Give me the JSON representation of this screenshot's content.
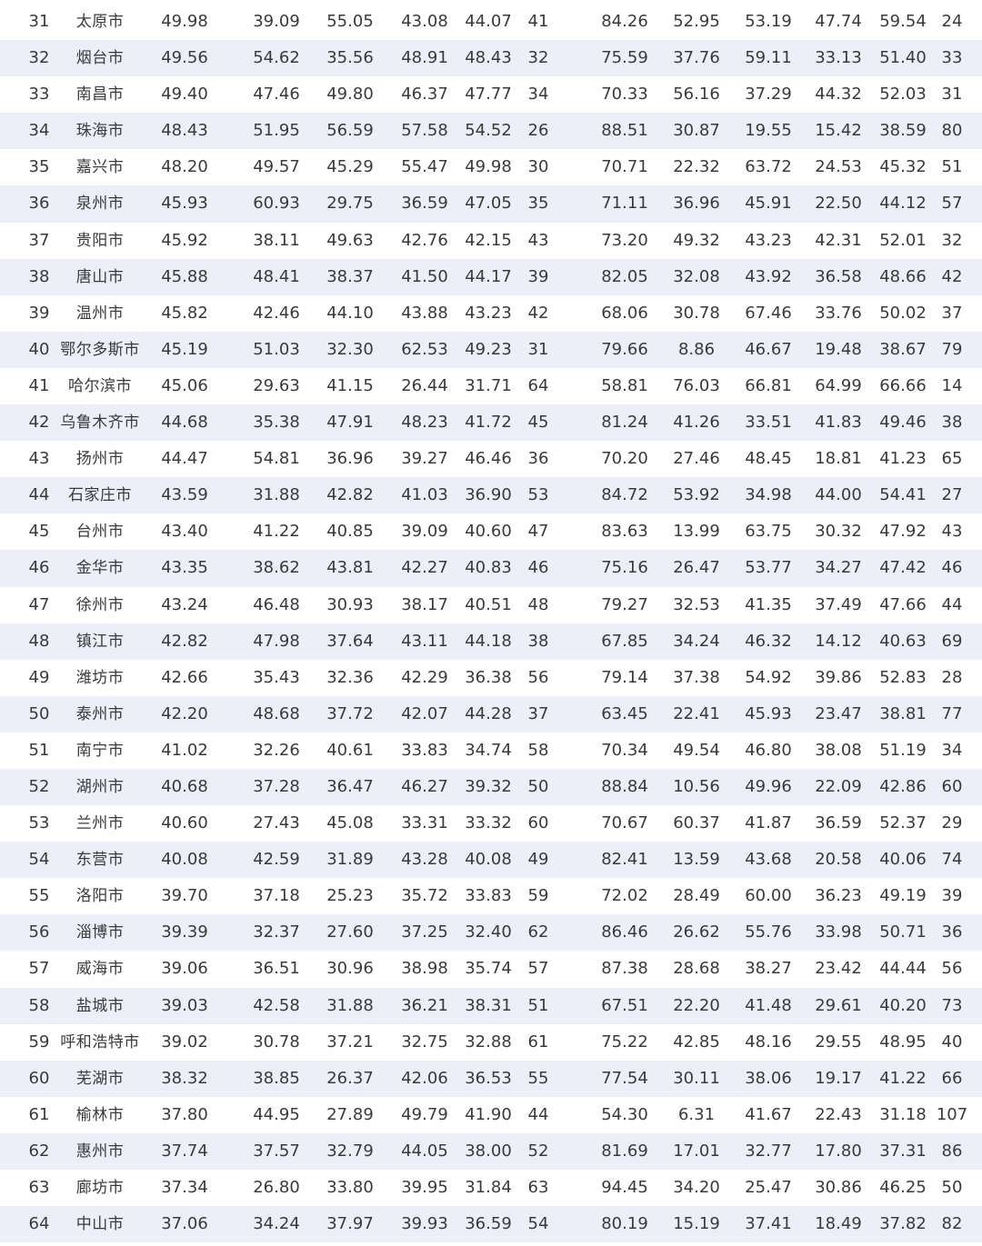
{
  "table": {
    "rows": [
      [
        "31",
        "太原市",
        "49.98",
        "39.09",
        "55.05",
        "43.08",
        "44.07",
        "41",
        "84.26",
        "52.95",
        "53.19",
        "47.74",
        "59.54",
        "24"
      ],
      [
        "32",
        "烟台市",
        "49.56",
        "54.62",
        "35.56",
        "48.91",
        "48.43",
        "32",
        "75.59",
        "37.76",
        "59.11",
        "33.13",
        "51.40",
        "33"
      ],
      [
        "33",
        "南昌市",
        "49.40",
        "47.46",
        "49.80",
        "46.37",
        "47.77",
        "34",
        "70.33",
        "56.16",
        "37.29",
        "44.32",
        "52.03",
        "31"
      ],
      [
        "34",
        "珠海市",
        "48.43",
        "51.95",
        "56.59",
        "57.58",
        "54.52",
        "26",
        "88.51",
        "30.87",
        "19.55",
        "15.42",
        "38.59",
        "80"
      ],
      [
        "35",
        "嘉兴市",
        "48.20",
        "49.57",
        "45.29",
        "55.47",
        "49.98",
        "30",
        "70.71",
        "22.32",
        "63.72",
        "24.53",
        "45.32",
        "51"
      ],
      [
        "36",
        "泉州市",
        "45.93",
        "60.93",
        "29.75",
        "36.59",
        "47.05",
        "35",
        "71.11",
        "36.96",
        "45.91",
        "22.50",
        "44.12",
        "57"
      ],
      [
        "37",
        "贵阳市",
        "45.92",
        "38.11",
        "49.63",
        "42.76",
        "42.15",
        "43",
        "73.20",
        "49.32",
        "43.23",
        "42.31",
        "52.01",
        "32"
      ],
      [
        "38",
        "唐山市",
        "45.88",
        "48.41",
        "38.37",
        "41.50",
        "44.17",
        "39",
        "82.05",
        "32.08",
        "43.92",
        "36.58",
        "48.66",
        "42"
      ],
      [
        "39",
        "温州市",
        "45.82",
        "42.46",
        "44.10",
        "43.88",
        "43.23",
        "42",
        "68.06",
        "30.78",
        "67.46",
        "33.76",
        "50.02",
        "37"
      ],
      [
        "40",
        "鄂尔多斯市",
        "45.19",
        "51.03",
        "32.30",
        "62.53",
        "49.23",
        "31",
        "79.66",
        "8.86",
        "46.67",
        "19.48",
        "38.67",
        "79"
      ],
      [
        "41",
        "哈尔滨市",
        "45.06",
        "29.63",
        "41.15",
        "26.44",
        "31.71",
        "64",
        "58.81",
        "76.03",
        "66.81",
        "64.99",
        "66.66",
        "14"
      ],
      [
        "42",
        "乌鲁木齐市",
        "44.68",
        "35.38",
        "47.91",
        "48.23",
        "41.72",
        "45",
        "81.24",
        "41.26",
        "33.51",
        "41.83",
        "49.46",
        "38"
      ],
      [
        "43",
        "扬州市",
        "44.47",
        "54.81",
        "36.96",
        "39.27",
        "46.46",
        "36",
        "70.20",
        "27.46",
        "48.45",
        "18.81",
        "41.23",
        "65"
      ],
      [
        "44",
        "石家庄市",
        "43.59",
        "31.88",
        "42.82",
        "41.03",
        "36.90",
        "53",
        "84.72",
        "53.92",
        "34.98",
        "44.00",
        "54.41",
        "27"
      ],
      [
        "45",
        "台州市",
        "43.40",
        "41.22",
        "40.85",
        "39.09",
        "40.60",
        "47",
        "83.63",
        "13.99",
        "63.75",
        "30.32",
        "47.92",
        "43"
      ],
      [
        "46",
        "金华市",
        "43.35",
        "38.62",
        "43.81",
        "42.27",
        "40.83",
        "46",
        "75.16",
        "26.47",
        "53.77",
        "34.27",
        "47.42",
        "46"
      ],
      [
        "47",
        "徐州市",
        "43.24",
        "46.48",
        "30.93",
        "38.17",
        "40.51",
        "48",
        "79.27",
        "32.53",
        "41.35",
        "37.49",
        "47.66",
        "44"
      ],
      [
        "48",
        "镇江市",
        "42.82",
        "47.98",
        "37.64",
        "43.11",
        "44.18",
        "38",
        "67.85",
        "34.24",
        "46.32",
        "14.12",
        "40.63",
        "69"
      ],
      [
        "49",
        "潍坊市",
        "42.66",
        "35.43",
        "32.36",
        "42.29",
        "36.38",
        "56",
        "79.14",
        "37.38",
        "54.92",
        "39.86",
        "52.83",
        "28"
      ],
      [
        "50",
        "泰州市",
        "42.20",
        "48.68",
        "37.72",
        "42.07",
        "44.28",
        "37",
        "63.45",
        "22.41",
        "45.93",
        "23.47",
        "38.81",
        "77"
      ],
      [
        "51",
        "南宁市",
        "41.02",
        "32.26",
        "40.61",
        "33.83",
        "34.74",
        "58",
        "70.34",
        "49.54",
        "46.80",
        "38.08",
        "51.19",
        "34"
      ],
      [
        "52",
        "湖州市",
        "40.68",
        "37.28",
        "36.47",
        "46.27",
        "39.32",
        "50",
        "88.84",
        "10.56",
        "49.96",
        "22.09",
        "42.86",
        "60"
      ],
      [
        "53",
        "兰州市",
        "40.60",
        "27.43",
        "45.08",
        "33.31",
        "33.32",
        "60",
        "70.67",
        "60.37",
        "41.87",
        "36.59",
        "52.37",
        "29"
      ],
      [
        "54",
        "东营市",
        "40.08",
        "42.59",
        "31.89",
        "43.28",
        "40.08",
        "49",
        "82.41",
        "13.59",
        "43.68",
        "20.58",
        "40.06",
        "74"
      ],
      [
        "55",
        "洛阳市",
        "39.70",
        "37.18",
        "25.23",
        "35.72",
        "33.83",
        "59",
        "72.02",
        "28.49",
        "60.00",
        "36.23",
        "49.19",
        "39"
      ],
      [
        "56",
        "淄博市",
        "39.39",
        "32.37",
        "27.60",
        "37.25",
        "32.40",
        "62",
        "86.46",
        "26.62",
        "55.76",
        "33.98",
        "50.71",
        "36"
      ],
      [
        "57",
        "威海市",
        "39.06",
        "36.51",
        "30.96",
        "38.98",
        "35.74",
        "57",
        "87.38",
        "28.68",
        "38.27",
        "23.42",
        "44.44",
        "56"
      ],
      [
        "58",
        "盐城市",
        "39.03",
        "42.58",
        "31.88",
        "36.21",
        "38.31",
        "51",
        "67.51",
        "22.20",
        "41.48",
        "29.61",
        "40.20",
        "73"
      ],
      [
        "59",
        "呼和浩特市",
        "39.02",
        "30.78",
        "37.21",
        "32.75",
        "32.88",
        "61",
        "75.22",
        "42.85",
        "48.16",
        "29.55",
        "48.95",
        "40"
      ],
      [
        "60",
        "芜湖市",
        "38.32",
        "38.85",
        "26.37",
        "42.06",
        "36.53",
        "55",
        "77.54",
        "30.11",
        "38.06",
        "19.17",
        "41.22",
        "66"
      ],
      [
        "61",
        "榆林市",
        "37.80",
        "44.95",
        "27.89",
        "49.79",
        "41.90",
        "44",
        "54.30",
        "6.31",
        "41.67",
        "22.43",
        "31.18",
        "107"
      ],
      [
        "62",
        "惠州市",
        "37.74",
        "37.57",
        "32.79",
        "44.05",
        "38.00",
        "52",
        "81.69",
        "17.01",
        "32.77",
        "17.80",
        "37.31",
        "86"
      ],
      [
        "63",
        "廊坊市",
        "37.34",
        "26.80",
        "33.80",
        "39.95",
        "31.84",
        "63",
        "94.45",
        "34.20",
        "25.47",
        "30.86",
        "46.25",
        "50"
      ],
      [
        "64",
        "中山市",
        "37.06",
        "34.24",
        "37.97",
        "39.93",
        "36.59",
        "54",
        "80.19",
        "15.19",
        "37.41",
        "18.49",
        "37.82",
        "82"
      ]
    ]
  }
}
